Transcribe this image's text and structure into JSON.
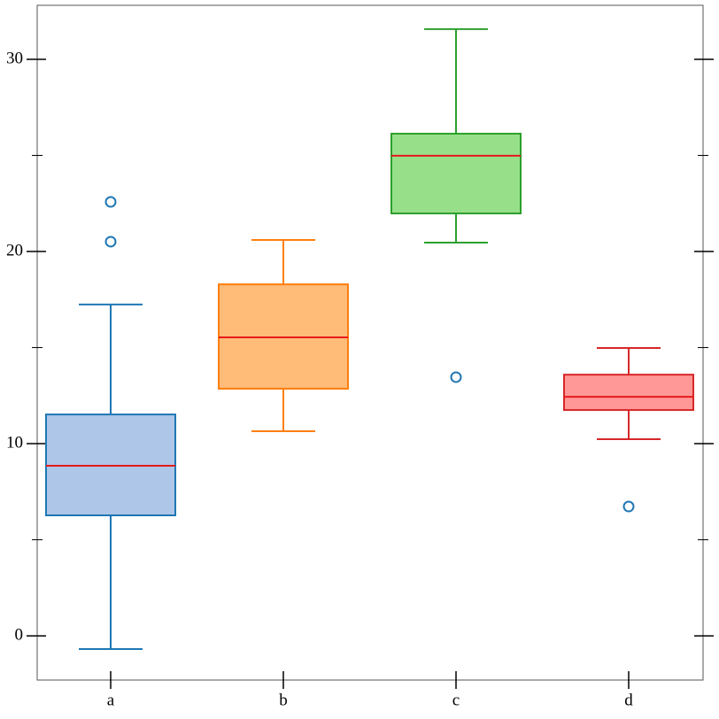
{
  "chart_data": {
    "type": "box",
    "categories": [
      "a",
      "b",
      "c",
      "d"
    ],
    "boxes": [
      {
        "whislo": -0.69,
        "q1": 6.27,
        "med": 8.85,
        "q3": 11.52,
        "whishi": 17.24,
        "fliers": [
          20.51,
          22.58
        ],
        "fill": "#aec7e8",
        "color": "#1f77b4"
      },
      {
        "whislo": 10.65,
        "q1": 12.86,
        "med": 15.53,
        "q3": 18.29,
        "whishi": 20.6,
        "fliers": [],
        "fill": "#ffbb78",
        "color": "#ff7f0e"
      },
      {
        "whislo": 20.46,
        "q1": 21.98,
        "med": 24.98,
        "q3": 26.13,
        "whishi": 31.57,
        "fliers": [
          13.46
        ],
        "fill": "#98df8a",
        "color": "#2ca02c"
      },
      {
        "whislo": 10.23,
        "q1": 11.75,
        "med": 12.44,
        "q3": 13.59,
        "whishi": 14.98,
        "fliers": [
          6.73
        ],
        "fill": "#ff9896",
        "color": "#d62728"
      }
    ],
    "median_color": "#e41a1c",
    "flier_color": "#1f77b4",
    "ylim": [
      -2.3,
      32.81
    ],
    "yticks": [
      0,
      10,
      20,
      30
    ],
    "minor_yticks": [
      5,
      15,
      25
    ]
  }
}
